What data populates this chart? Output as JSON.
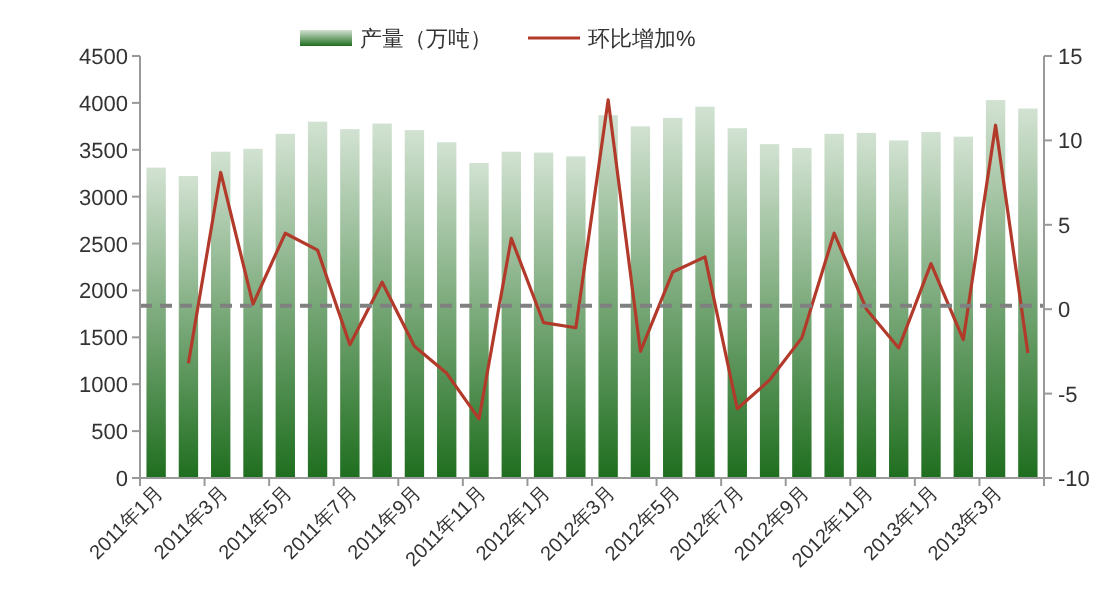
{
  "chart_data": {
    "type": "bar",
    "categories": [
      "2011年1月",
      null,
      "2011年3月",
      null,
      "2011年5月",
      null,
      "2011年7月",
      null,
      "2011年9月",
      null,
      "2011年11月",
      null,
      "2012年1月",
      null,
      "2012年3月",
      null,
      "2012年5月",
      null,
      "2012年7月",
      null,
      "2012年9月",
      null,
      "2012年11月",
      null,
      "2013年1月",
      null,
      "2013年3月",
      null
    ],
    "series": [
      {
        "name": "产量（万吨）",
        "color": "#1f6e1f",
        "values": [
          3310,
          3220,
          3480,
          3510,
          3670,
          3800,
          3720,
          3780,
          3710,
          3580,
          3360,
          3480,
          3470,
          3430,
          3870,
          3750,
          3840,
          3960,
          3730,
          3560,
          3520,
          3670,
          3680,
          3600,
          3690,
          3640,
          4030,
          3940
        ]
      },
      {
        "name": "环比增加%",
        "type": "line",
        "axis": "y2",
        "color": "#b23a2a",
        "values": [
          null,
          -3.2,
          8.1,
          0.3,
          4.5,
          3.5,
          -2.1,
          1.6,
          -2.2,
          -3.8,
          -6.5,
          4.2,
          -0.8,
          -1.1,
          12.4,
          -2.5,
          2.2,
          3.1,
          -5.9,
          -4.2,
          -1.7,
          4.5,
          0,
          -2.3,
          2.7,
          -1.8,
          10.9,
          -2.6
        ]
      }
    ],
    "ylim": [
      0,
      4500
    ],
    "yticks": [
      0,
      500,
      1000,
      1500,
      2000,
      2500,
      3000,
      3500,
      4000,
      4500
    ],
    "y2lim": [
      -10,
      15
    ],
    "y2ticks": [
      -10,
      -5,
      0,
      5,
      10,
      15
    ],
    "ref_lines": [
      {
        "axis": "y2",
        "value": 0.2,
        "color": "#808080",
        "line_style": "dashed"
      }
    ],
    "legend": "top",
    "grid": false
  }
}
